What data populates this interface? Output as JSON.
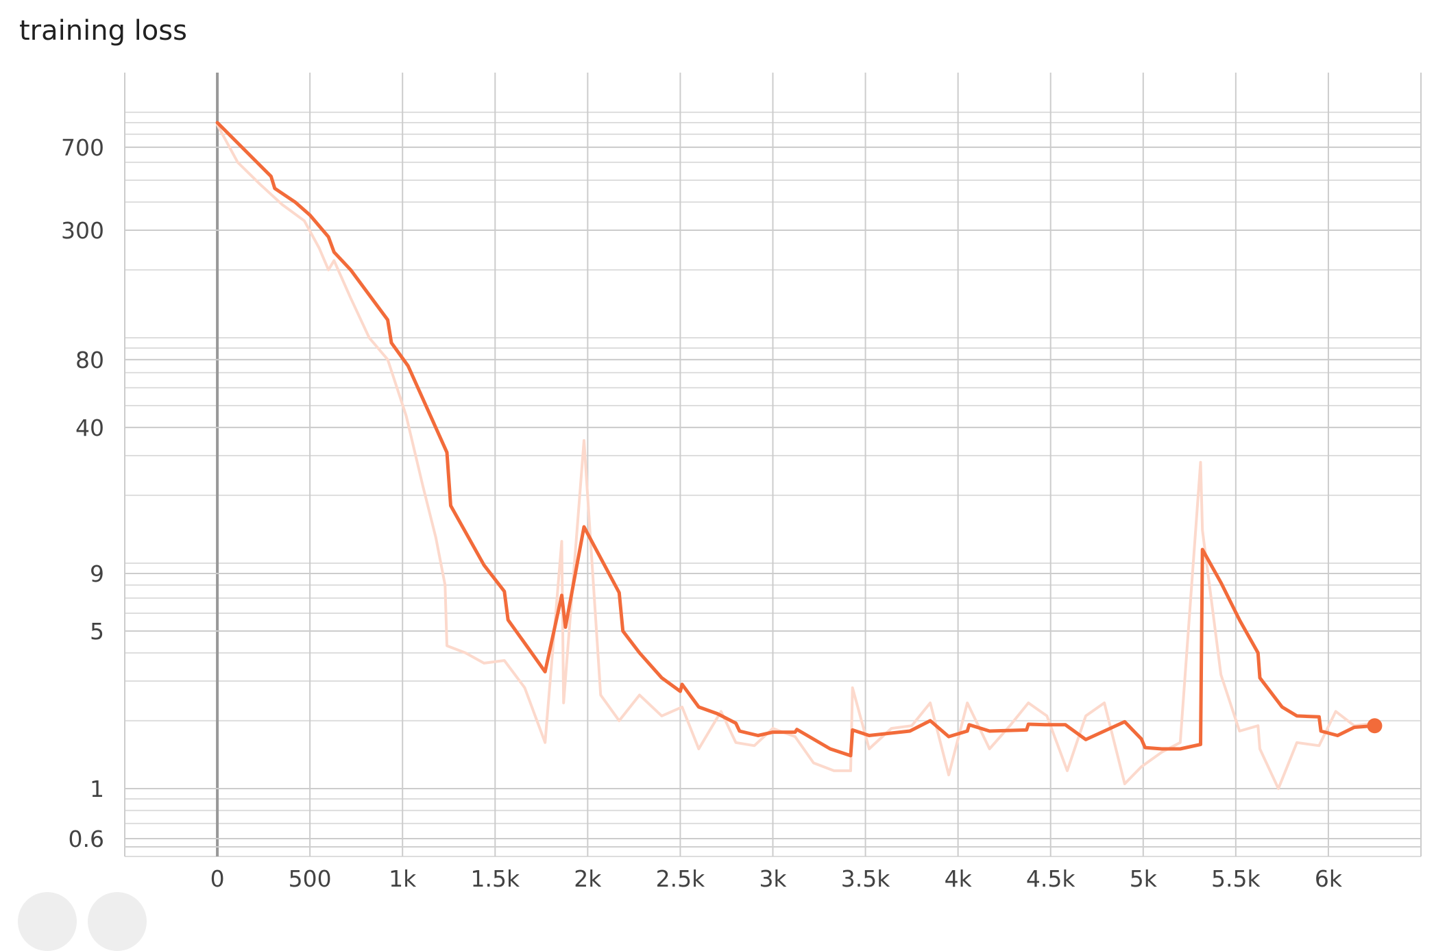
{
  "chart_data": {
    "type": "line",
    "title": "training loss",
    "xlabel": "",
    "ylabel": "",
    "y_scale": "log",
    "xlim": [
      -500,
      6500
    ],
    "ylim": [
      0.5,
      1500
    ],
    "x_ticks": [
      {
        "value": 0,
        "label": "0"
      },
      {
        "value": 500,
        "label": "500"
      },
      {
        "value": 1000,
        "label": "1k"
      },
      {
        "value": 1500,
        "label": "1.5k"
      },
      {
        "value": 2000,
        "label": "2k"
      },
      {
        "value": 2500,
        "label": "2.5k"
      },
      {
        "value": 3000,
        "label": "3k"
      },
      {
        "value": 3500,
        "label": "3.5k"
      },
      {
        "value": 4000,
        "label": "4k"
      },
      {
        "value": 4500,
        "label": "4.5k"
      },
      {
        "value": 5000,
        "label": "5k"
      },
      {
        "value": 5500,
        "label": "5.5k"
      },
      {
        "value": 6000,
        "label": "6k"
      }
    ],
    "y_ticks": [
      {
        "value": 0.6,
        "label": "0.6"
      },
      {
        "value": 1,
        "label": "1"
      },
      {
        "value": 5,
        "label": "5"
      },
      {
        "value": 9,
        "label": "9"
      },
      {
        "value": 40,
        "label": "40"
      },
      {
        "value": 80,
        "label": "80"
      },
      {
        "value": 300,
        "label": "300"
      },
      {
        "value": 700,
        "label": "700"
      }
    ],
    "grid": true,
    "colors": {
      "smoothed": "#f26b3a",
      "raw": "#fcd9cc",
      "grid": "#cccccc",
      "zero_line": "#999999"
    },
    "series": [
      {
        "role": "smoothed",
        "x": [
          0,
          290,
          310,
          420,
          500,
          600,
          630,
          720,
          920,
          940,
          1030,
          1240,
          1260,
          1440,
          1550,
          1570,
          1670,
          1770,
          1860,
          1880,
          1980,
          2170,
          2190,
          2280,
          2400,
          2500,
          2510,
          2600,
          2700,
          2800,
          2820,
          2920,
          3000,
          3120,
          3130,
          3310,
          3420,
          3430,
          3520,
          3740,
          3850,
          3950,
          4050,
          4060,
          4170,
          4370,
          4380,
          4470,
          4580,
          4690,
          4900,
          4990,
          5010,
          5100,
          5200,
          5310,
          5320,
          5420,
          5520,
          5620,
          5630,
          5750,
          5830,
          5950,
          5960,
          6050,
          6140,
          6250
        ],
        "y": [
          900,
          520,
          460,
          400,
          350,
          280,
          240,
          200,
          120,
          95,
          75,
          31,
          18,
          9.8,
          7.5,
          5.6,
          4.3,
          3.3,
          7.2,
          5.2,
          14.5,
          7.4,
          5.0,
          4.0,
          3.1,
          2.7,
          2.9,
          2.3,
          2.15,
          1.95,
          1.8,
          1.72,
          1.78,
          1.78,
          1.83,
          1.5,
          1.4,
          1.82,
          1.72,
          1.8,
          2.0,
          1.7,
          1.8,
          1.92,
          1.8,
          1.82,
          1.93,
          1.92,
          1.92,
          1.65,
          1.98,
          1.66,
          1.52,
          1.5,
          1.5,
          1.57,
          11.5,
          8.2,
          5.6,
          4.0,
          3.1,
          2.3,
          2.1,
          2.08,
          1.8,
          1.72,
          1.87,
          1.9
        ]
      },
      {
        "role": "raw",
        "x": [
          0,
          110,
          230,
          350,
          470,
          550,
          600,
          630,
          720,
          820,
          920,
          1020,
          1110,
          1180,
          1230,
          1240,
          1340,
          1440,
          1550,
          1660,
          1770,
          1860,
          1870,
          1980,
          2070,
          2170,
          2280,
          2400,
          2510,
          2600,
          2720,
          2800,
          2900,
          3000,
          3120,
          3220,
          3330,
          3420,
          3430,
          3520,
          3640,
          3750,
          3850,
          3950,
          4050,
          4170,
          4280,
          4380,
          4480,
          4590,
          4690,
          4790,
          4900,
          4990,
          5100,
          5200,
          5310,
          5320,
          5420,
          5520,
          5620,
          5630,
          5730,
          5830,
          5950,
          6040,
          6140,
          6250
        ],
        "y": [
          880,
          600,
          480,
          390,
          330,
          250,
          200,
          220,
          150,
          100,
          80,
          45,
          22,
          13,
          8,
          4.3,
          4.0,
          3.6,
          3.7,
          2.8,
          1.6,
          12.5,
          2.4,
          35,
          2.6,
          2.0,
          2.6,
          2.1,
          2.3,
          1.5,
          2.2,
          1.6,
          1.55,
          1.85,
          1.7,
          1.3,
          1.2,
          1.2,
          2.8,
          1.5,
          1.85,
          1.9,
          2.4,
          1.15,
          2.4,
          1.5,
          1.9,
          2.4,
          2.1,
          1.2,
          2.1,
          2.4,
          1.05,
          1.25,
          1.45,
          1.6,
          28,
          14,
          3.2,
          1.8,
          1.9,
          1.5,
          1.0,
          1.6,
          1.55,
          2.2,
          1.9,
          1.95
        ]
      }
    ]
  }
}
